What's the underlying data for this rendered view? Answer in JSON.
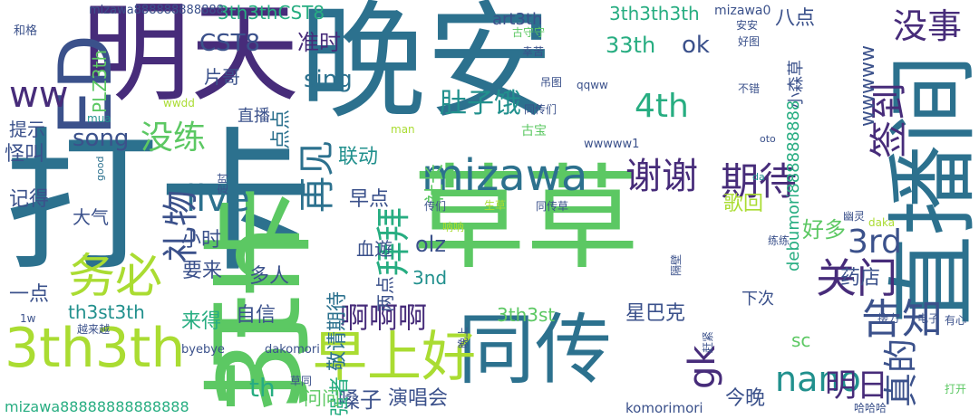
{
  "word_cloud": {
    "palette": {
      "purple": "#472c7a",
      "indigo": "#3b518b",
      "blue": "#2c718e",
      "teal": "#21908d",
      "green": "#27ad81",
      "lime": "#5cc863",
      "yellow_green": "#aadc32"
    },
    "words": [
      {
        "text": "打卡",
        "color": "#2c718e",
        "vertical": false
      },
      {
        "text": "晚安",
        "color": "#2c718e",
        "vertical": false
      },
      {
        "text": "草草",
        "color": "#5cc863",
        "vertical": false
      },
      {
        "text": "打卡",
        "color": "#5cc863",
        "vertical": true
      },
      {
        "text": "明天",
        "color": "#472c7a",
        "vertical": false
      },
      {
        "text": "直播间",
        "color": "#2c718e",
        "vertical": true
      },
      {
        "text": "同传",
        "color": "#2c718e",
        "vertical": false
      },
      {
        "text": "3th",
        "color": "#5cc863",
        "vertical": false
      },
      {
        "text": "3th3th",
        "color": "#aadc32",
        "vertical": false
      },
      {
        "text": "早上好",
        "color": "#aadc32",
        "vertical": false
      },
      {
        "text": "mizawa",
        "color": "#2c718e",
        "vertical": false
      },
      {
        "text": "ED",
        "color": "#3b518b",
        "vertical": true
      },
      {
        "text": "务必",
        "color": "#aadc32",
        "vertical": false
      },
      {
        "text": "再见",
        "color": "#2c718e",
        "vertical": true
      },
      {
        "text": "期待",
        "color": "#472c7a",
        "vertical": false
      },
      {
        "text": "谢谢",
        "color": "#472c7a",
        "vertical": false
      },
      {
        "text": "live",
        "color": "#2c718e",
        "vertical": false
      },
      {
        "text": "礼物",
        "color": "#3b518b",
        "vertical": true
      },
      {
        "text": "关门",
        "color": "#472c7a",
        "vertical": false
      },
      {
        "text": "告知",
        "color": "#3b518b",
        "vertical": false
      },
      {
        "text": "签到",
        "color": "#472c7a",
        "vertical": true
      },
      {
        "text": "没事",
        "color": "#472c7a",
        "vertical": false
      },
      {
        "text": "拜拜",
        "color": "#27ad81",
        "vertical": true
      },
      {
        "text": "nano",
        "color": "#21908d",
        "vertical": false
      },
      {
        "text": "ww",
        "color": "#472c7a",
        "vertical": false
      },
      {
        "text": "4th",
        "color": "#27ad81",
        "vertical": false
      },
      {
        "text": "明日",
        "color": "#472c7a",
        "vertical": false
      },
      {
        "text": "gk",
        "color": "#472c7a",
        "vertical": true
      },
      {
        "text": "真的",
        "color": "#3b518b",
        "vertical": true
      },
      {
        "text": "3rd",
        "color": "#3b518b",
        "vertical": false
      },
      {
        "text": "啊啊啊",
        "color": "#472c7a",
        "vertical": false
      },
      {
        "text": "没练",
        "color": "#5cc863",
        "vertical": false
      },
      {
        "text": "sing",
        "color": "#2c718e",
        "vertical": false
      },
      {
        "text": "song",
        "color": "#3b518b",
        "vertical": false
      },
      {
        "text": "CST8",
        "color": "#3b518b",
        "vertical": false
      },
      {
        "text": "33th",
        "color": "#27ad81",
        "vertical": false
      },
      {
        "text": "ok",
        "color": "#3b518b",
        "vertical": false
      },
      {
        "text": "肚子饿",
        "color": "#21908d",
        "vertical": false
      },
      {
        "text": "准时",
        "color": "#472c7a",
        "vertical": false
      },
      {
        "text": "3th3thCST8",
        "color": "#27ad81",
        "vertical": false
      },
      {
        "text": "3th3th3th",
        "color": "#27ad81",
        "vertical": false
      },
      {
        "text": "art3th",
        "color": "#3b518b",
        "vertical": false
      },
      {
        "text": "mizawa0",
        "color": "#3b518b",
        "vertical": false
      },
      {
        "text": "八点",
        "color": "#3b518b",
        "vertical": false
      },
      {
        "text": "wwwww",
        "color": "#3b518b",
        "vertical": true
      },
      {
        "text": "小森草",
        "color": "#3b518b",
        "vertical": true
      },
      {
        "text": "PLZ3th",
        "color": "#5cc863",
        "vertical": true
      },
      {
        "text": "片哥",
        "color": "#3b518b",
        "vertical": false
      },
      {
        "text": "联动",
        "color": "#21908d",
        "vertical": false
      },
      {
        "text": "点点",
        "color": "#2c718e",
        "vertical": true
      },
      {
        "text": "直播",
        "color": "#3b518b",
        "vertical": false
      },
      {
        "text": "提示",
        "color": "#3b518b",
        "vertical": false
      },
      {
        "text": "怪叫",
        "color": "#3b518b",
        "vertical": false
      },
      {
        "text": "记得",
        "color": "#3b518b",
        "vertical": false
      },
      {
        "text": "大气",
        "color": "#3b518b",
        "vertical": false
      },
      {
        "text": "小时",
        "color": "#3b518b",
        "vertical": false
      },
      {
        "text": "早点",
        "color": "#3b518b",
        "vertical": false
      },
      {
        "text": "歌回",
        "color": "#aadc32",
        "vertical": false
      },
      {
        "text": "好多",
        "color": "#5cc863",
        "vertical": false
      },
      {
        "text": "olz",
        "color": "#3b518b",
        "vertical": false
      },
      {
        "text": "血遊",
        "color": "#3b518b",
        "vertical": false
      },
      {
        "text": "要来",
        "color": "#3b518b",
        "vertical": false
      },
      {
        "text": "多人",
        "color": "#3b518b",
        "vertical": false
      },
      {
        "text": "3nd",
        "color": "#21908d",
        "vertical": false
      },
      {
        "text": "两点",
        "color": "#3b518b",
        "vertical": true
      },
      {
        "text": "药店",
        "color": "#3b518b",
        "vertical": false
      },
      {
        "text": "一点",
        "color": "#3b518b",
        "vertical": false
      },
      {
        "text": "th3st3th",
        "color": "#21908d",
        "vertical": false
      },
      {
        "text": "敬请期待",
        "color": "#2c718e",
        "vertical": true
      },
      {
        "text": "星巴克",
        "color": "#3b518b",
        "vertical": false
      },
      {
        "text": "3th3st",
        "color": "#5cc863",
        "vertical": false
      },
      {
        "text": "来得",
        "color": "#27ad81",
        "vertical": false
      },
      {
        "text": "自信",
        "color": "#3b518b",
        "vertical": false
      },
      {
        "text": "下次",
        "color": "#3b518b",
        "vertical": false
      },
      {
        "text": "sc",
        "color": "#5cc863",
        "vertical": false
      },
      {
        "text": "th",
        "color": "#27ad81",
        "vertical": false
      },
      {
        "text": "嗓子",
        "color": "#3b518b",
        "vertical": false
      },
      {
        "text": "演唱会",
        "color": "#3b518b",
        "vertical": false
      },
      {
        "text": "今晚",
        "color": "#3b518b",
        "vertical": false
      },
      {
        "text": "强者",
        "color": "#27ad81",
        "vertical": true
      },
      {
        "text": "问问",
        "color": "#5cc863",
        "vertical": false
      },
      {
        "text": "komorimori",
        "color": "#3b518b",
        "vertical": false
      },
      {
        "text": "mizawa88888888888888",
        "color": "#27ad81",
        "vertical": false
      },
      {
        "text": "dakomori",
        "color": "#3b518b",
        "vertical": false
      },
      {
        "text": "byebye",
        "color": "#3b518b",
        "vertical": false
      },
      {
        "text": "越来越",
        "color": "#3b518b",
        "vertical": false
      },
      {
        "text": "mizawa888888888888",
        "color": "#3b518b",
        "vertical": false
      },
      {
        "text": "和格",
        "color": "#3b518b",
        "vertical": false
      },
      {
        "text": "古守守",
        "color": "#5cc863",
        "vertical": false
      },
      {
        "text": "安安",
        "color": "#3b518b",
        "vertical": false
      },
      {
        "text": "好图",
        "color": "#3b518b",
        "vertical": false
      },
      {
        "text": "幸苦",
        "color": "#3b518b",
        "vertical": false
      },
      {
        "text": "吊图",
        "color": "#3b518b",
        "vertical": false
      },
      {
        "text": "同传们",
        "color": "#3b518b",
        "vertical": false
      },
      {
        "text": "qqww",
        "color": "#3b518b",
        "vertical": false
      },
      {
        "text": "不错",
        "color": "#3b518b",
        "vertical": false
      },
      {
        "text": "wwdd",
        "color": "#aadc32",
        "vertical": false
      },
      {
        "text": "mua",
        "color": "#21908d",
        "vertical": false
      },
      {
        "text": "man",
        "color": "#aadc32",
        "vertical": false
      },
      {
        "text": "古宝",
        "color": "#5cc863",
        "vertical": false
      },
      {
        "text": "wwwww1",
        "color": "#3b518b",
        "vertical": false
      },
      {
        "text": "oto",
        "color": "#3b518b",
        "vertical": false
      },
      {
        "text": "debumori888888888",
        "color": "#27ad81",
        "vertical": true
      },
      {
        "text": "da",
        "color": "#21908d",
        "vertical": false
      },
      {
        "text": "good",
        "color": "#2c718e",
        "vertical": true
      },
      {
        "text": "定时",
        "color": "#3b518b",
        "vertical": true
      },
      {
        "text": "社长",
        "color": "#5cc863",
        "vertical": true
      },
      {
        "text": "传们",
        "color": "#3b518b",
        "vertical": false
      },
      {
        "text": "生草",
        "color": "#aadc32",
        "vertical": false
      },
      {
        "text": "同传草",
        "color": "#3b518b",
        "vertical": false
      },
      {
        "text": "幽灵",
        "color": "#3b518b",
        "vertical": false
      },
      {
        "text": "daka",
        "color": "#aadc32",
        "vertical": false
      },
      {
        "text": "练练",
        "color": "#3b518b",
        "vertical": false
      },
      {
        "text": "呐呐",
        "color": "#aadc32",
        "vertical": false
      },
      {
        "text": "men",
        "color": "#5cc863",
        "vertical": false
      },
      {
        "text": "隔壁",
        "color": "#3b518b",
        "vertical": true
      },
      {
        "text": "晚上",
        "color": "#3b518b",
        "vertical": true
      },
      {
        "text": "赶紧",
        "color": "#3b518b",
        "vertical": true
      },
      {
        "text": "接力",
        "color": "#3b518b",
        "vertical": false
      },
      {
        "text": "电子",
        "color": "#3b518b",
        "vertical": false
      },
      {
        "text": "有心",
        "color": "#3b518b",
        "vertical": false
      },
      {
        "text": "1w",
        "color": "#3b518b",
        "vertical": false
      },
      {
        "text": "草同",
        "color": "#3b518b",
        "vertical": false
      },
      {
        "text": "哈哈哈",
        "color": "#3b518b",
        "vertical": false
      },
      {
        "text": "打开",
        "color": "#5cc863",
        "vertical": false
      }
    ]
  }
}
